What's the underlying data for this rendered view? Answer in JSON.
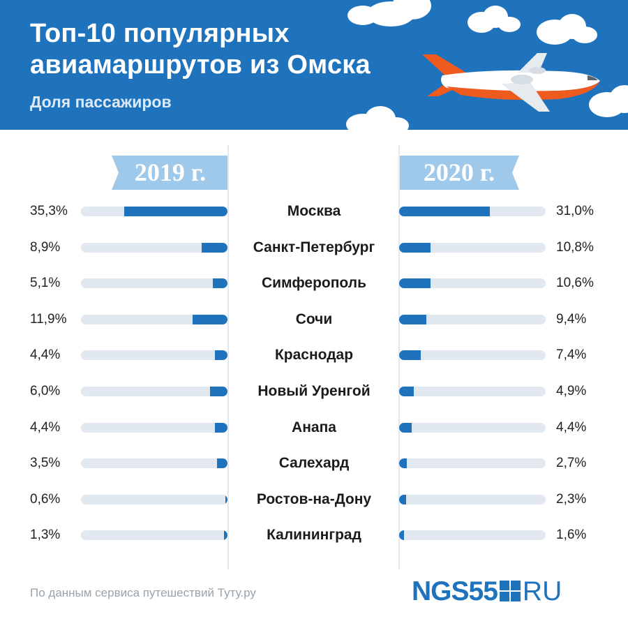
{
  "header": {
    "title_line1": "Топ-10 популярных",
    "title_line2": "авиамаршрутов из Омска",
    "subtitle": "Доля пассажиров"
  },
  "colors": {
    "header_bg": "#1f73bd",
    "bar_fill": "#1f73bd",
    "bar_track": "#e1e8f0",
    "ribbon": "#9fc9ea"
  },
  "icons": [
    "airplane-icon",
    "cloud-icon"
  ],
  "chart_data": {
    "type": "bar",
    "orientation": "horizontal-butterfly",
    "unit": "%",
    "xlim": [
      0,
      50
    ],
    "categories": [
      "Москва",
      "Санкт-Петербург",
      "Симферополь",
      "Сочи",
      "Краснодар",
      "Новый Уренгой",
      "Анапа",
      "Салехард",
      "Ростов-на-Дону",
      "Калининград"
    ],
    "series": [
      {
        "name": "2019 г.",
        "values": [
          35.3,
          8.9,
          5.1,
          11.9,
          4.4,
          6.0,
          4.4,
          3.5,
          0.6,
          1.3
        ],
        "labels": [
          "35,3%",
          "8,9%",
          "5,1%",
          "11,9%",
          "4,4%",
          "6,0%",
          "4,4%",
          "3,5%",
          "0,6%",
          "1,3%"
        ]
      },
      {
        "name": "2020 г.",
        "values": [
          31.0,
          10.8,
          10.6,
          9.4,
          7.4,
          4.9,
          4.4,
          2.7,
          2.3,
          1.6
        ],
        "labels": [
          "31,0%",
          "10,8%",
          "10,6%",
          "9,4%",
          "7,4%",
          "4,9%",
          "4,4%",
          "2,7%",
          "2,3%",
          "1,6%"
        ]
      }
    ]
  },
  "footer": {
    "source": "По данным сервиса путешествий Туту.ру",
    "logo_main": "NGS55",
    "logo_suffix": "RU"
  }
}
